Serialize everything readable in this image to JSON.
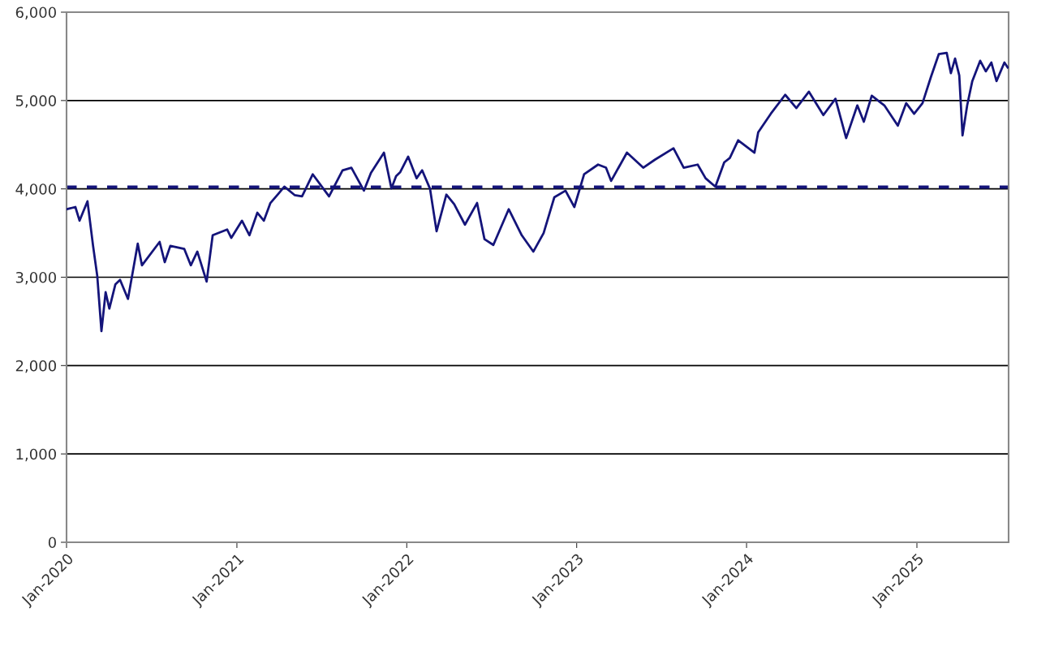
{
  "chart_data": {
    "type": "line",
    "x": [
      "2020-01-02",
      "2020-01-20",
      "2020-01-29",
      "2020-02-15",
      "2020-02-27",
      "2020-03-07",
      "2020-03-16",
      "2020-03-25",
      "2020-04-02",
      "2020-04-15",
      "2020-04-25",
      "2020-05-12",
      "2020-06-02",
      "2020-06-11",
      "2020-07-19",
      "2020-07-30",
      "2020-08-11",
      "2020-09-10",
      "2020-09-24",
      "2020-10-08",
      "2020-10-28",
      "2020-11-10",
      "2020-12-11",
      "2020-12-20",
      "2021-01-12",
      "2021-01-28",
      "2021-02-14",
      "2021-02-28",
      "2021-03-14",
      "2021-04-01",
      "2021-04-13",
      "2021-05-05",
      "2021-05-21",
      "2021-06-13",
      "2021-07-18",
      "2021-08-16",
      "2021-09-04",
      "2021-10-01",
      "2021-10-16",
      "2021-11-13",
      "2021-11-29",
      "2021-12-09",
      "2021-12-18",
      "2022-01-04",
      "2022-01-22",
      "2022-02-03",
      "2022-02-20",
      "2022-03-06",
      "2022-03-27",
      "2022-04-13",
      "2022-05-06",
      "2022-06-01",
      "2022-06-17",
      "2022-07-06",
      "2022-08-08",
      "2022-09-05",
      "2022-09-30",
      "2022-10-22",
      "2022-11-14",
      "2022-12-08",
      "2022-12-27",
      "2023-01-17",
      "2023-02-16",
      "2023-03-05",
      "2023-03-16",
      "2023-04-19",
      "2023-05-24",
      "2023-06-18",
      "2023-07-28",
      "2023-08-19",
      "2023-09-18",
      "2023-10-05",
      "2023-10-26",
      "2023-11-14",
      "2023-11-26",
      "2023-12-14",
      "2024-01-18",
      "2024-01-26",
      "2024-02-22",
      "2024-03-24",
      "2024-04-17",
      "2024-05-14",
      "2024-06-14",
      "2024-07-10",
      "2024-08-02",
      "2024-08-26",
      "2024-09-09",
      "2024-09-26",
      "2024-10-23",
      "2024-11-21",
      "2024-12-09",
      "2024-12-26",
      "2025-01-13",
      "2025-01-31",
      "2025-02-17",
      "2025-03-06",
      "2025-03-15",
      "2025-03-24",
      "2025-04-02",
      "2025-04-09",
      "2025-04-19",
      "2025-04-30",
      "2025-05-17",
      "2025-05-29",
      "2025-06-10",
      "2025-06-21",
      "2025-07-08",
      "2025-07-15"
    ],
    "series": [
      {
        "color": "#14147a",
        "values": [
          3770,
          3795,
          3640,
          3860,
          3355,
          3015,
          2390,
          2830,
          2645,
          2920,
          2970,
          2755,
          3380,
          3135,
          3400,
          3170,
          3355,
          3320,
          3135,
          3290,
          2950,
          3475,
          3540,
          3445,
          3640,
          3475,
          3730,
          3640,
          3840,
          3950,
          4025,
          3930,
          3915,
          4165,
          3915,
          4210,
          4240,
          3980,
          4180,
          4410,
          4005,
          4145,
          4190,
          4365,
          4120,
          4210,
          4000,
          3520,
          3935,
          3825,
          3595,
          3840,
          3430,
          3365,
          3770,
          3475,
          3290,
          3500,
          3905,
          3980,
          3795,
          4165,
          4275,
          4240,
          4090,
          4410,
          4240,
          4330,
          4460,
          4240,
          4275,
          4120,
          4025,
          4300,
          4350,
          4550,
          4410,
          4640,
          4850,
          5065,
          4915,
          5100,
          4835,
          5020,
          4575,
          4945,
          4760,
          5055,
          4945,
          4715,
          4970,
          4850,
          4970,
          5265,
          5525,
          5540,
          5310,
          5475,
          5285,
          4605,
          4945,
          5220,
          5450,
          5330,
          5430,
          5220,
          5430,
          5375
        ]
      }
    ],
    "xlim": [
      "2020-01-01",
      "2025-07-17"
    ],
    "xticks": [
      {
        "value": "2020-01-01",
        "label": "Jan-2020"
      },
      {
        "value": "2021-01-01",
        "label": "Jan-2021"
      },
      {
        "value": "2022-01-01",
        "label": "Jan-2022"
      },
      {
        "value": "2023-01-01",
        "label": "Jan-2023"
      },
      {
        "value": "2024-01-01",
        "label": "Jan-2024"
      },
      {
        "value": "2025-01-01",
        "label": "Jan-2025"
      }
    ],
    "ylim": [
      0,
      6000
    ],
    "yticks": [
      {
        "value": 0,
        "label": "0"
      },
      {
        "value": 1000,
        "label": "1,000"
      },
      {
        "value": 2000,
        "label": "2,000"
      },
      {
        "value": 3000,
        "label": "3,000"
      },
      {
        "value": 4000,
        "label": "4,000"
      },
      {
        "value": 5000,
        "label": "5,000"
      },
      {
        "value": 6000,
        "label": "6,000"
      }
    ],
    "grid": "y",
    "ref_lines": [
      {
        "axis": "y",
        "value": 4020,
        "color": "#14147a",
        "line_style": "dashed"
      }
    ]
  }
}
